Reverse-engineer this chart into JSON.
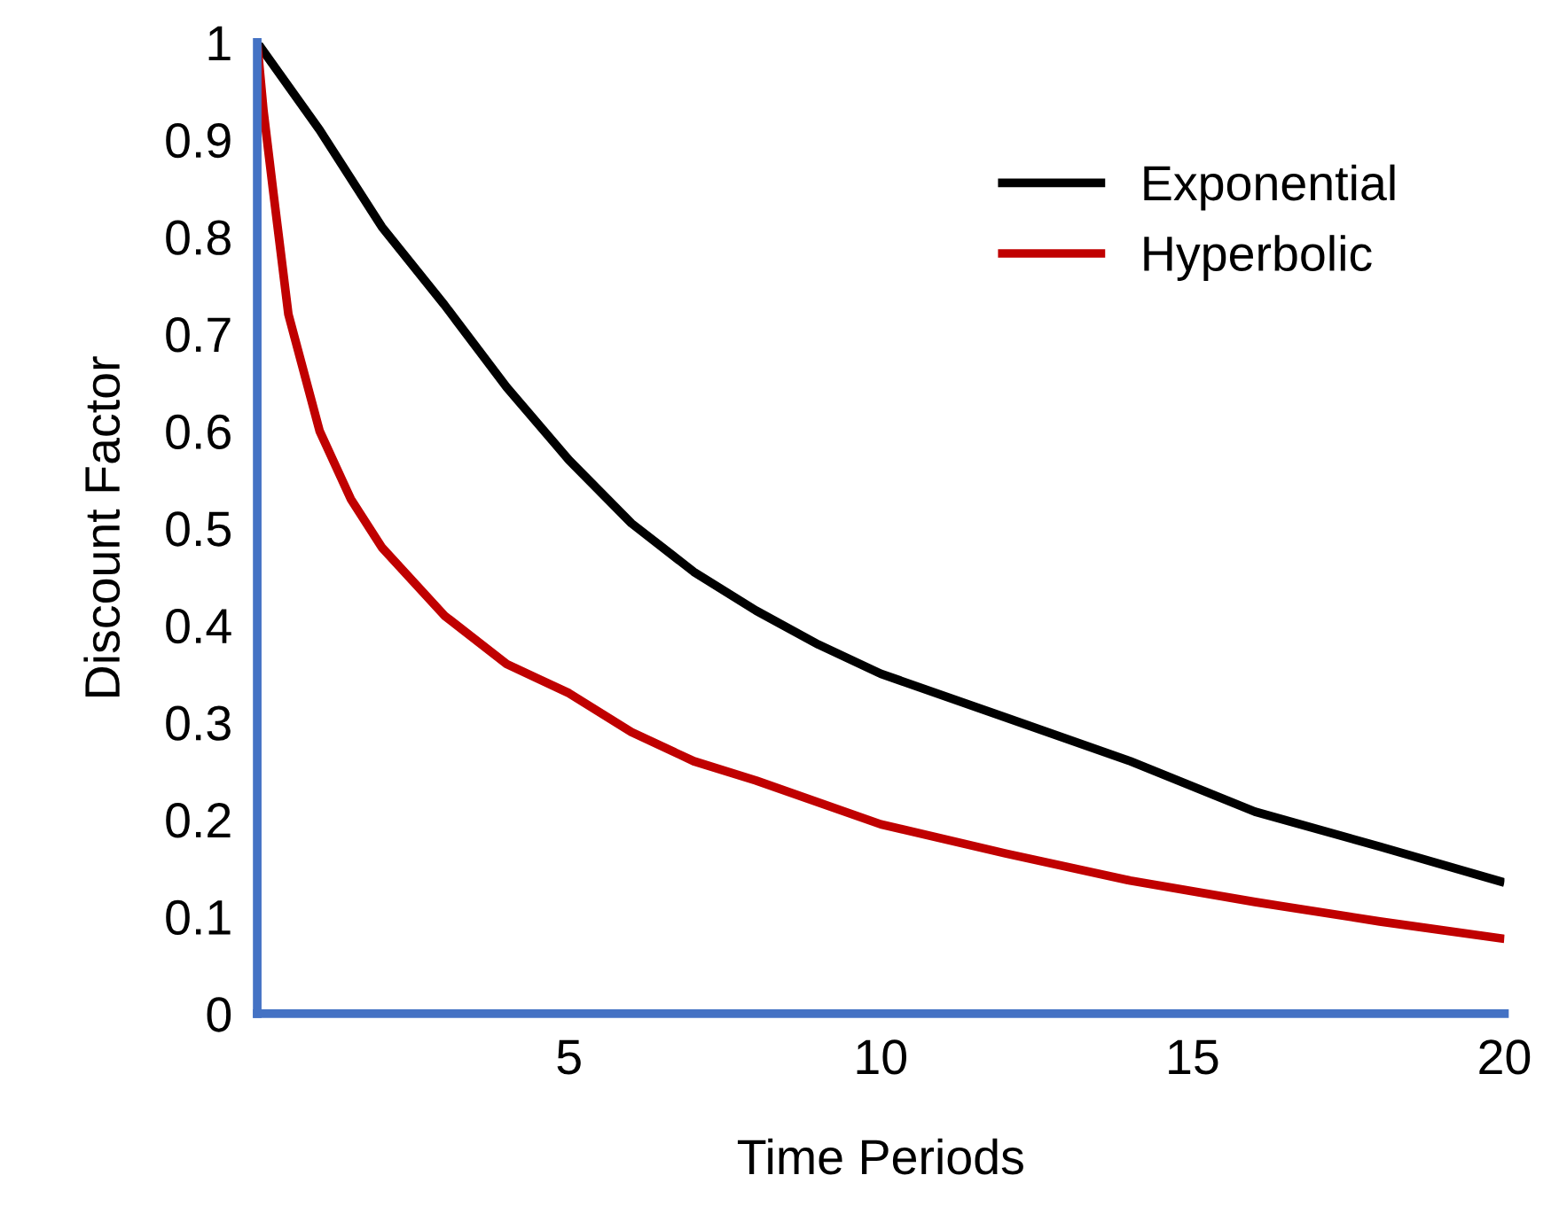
{
  "chart_data": {
    "type": "line",
    "xlabel": "Time Periods",
    "ylabel": "Discount Factor",
    "xlim": [
      0,
      20
    ],
    "ylim": [
      0,
      1
    ],
    "xticks": [
      5,
      10,
      15,
      20
    ],
    "yticks": [
      0,
      0.1,
      0.2,
      0.3,
      0.4,
      0.5,
      0.6,
      0.7,
      0.8,
      0.9,
      1
    ],
    "grid": false,
    "legend": "top right",
    "marker": "none",
    "line_style": "solid",
    "series": [
      {
        "name": "Exponential",
        "color": "#000000",
        "x": [
          0,
          1,
          2,
          3,
          4,
          5,
          6,
          7,
          8,
          9,
          10,
          12,
          14,
          16,
          18,
          20
        ],
        "values": [
          1,
          0.91,
          0.81,
          0.73,
          0.645,
          0.57,
          0.505,
          0.455,
          0.415,
          0.38,
          0.35,
          0.305,
          0.26,
          0.208,
          0.172,
          0.135
        ]
      },
      {
        "name": "Hyperbolic",
        "color": "#c00000",
        "x": [
          0,
          0.1,
          0.25,
          0.5,
          1,
          1.5,
          2,
          3,
          4,
          5,
          6,
          7,
          8,
          10,
          12,
          14,
          16,
          18,
          20
        ],
        "values": [
          1,
          0.93,
          0.85,
          0.72,
          0.6,
          0.53,
          0.48,
          0.41,
          0.36,
          0.33,
          0.29,
          0.26,
          0.24,
          0.195,
          0.165,
          0.137,
          0.115,
          0.095,
          0.077
        ]
      }
    ]
  }
}
